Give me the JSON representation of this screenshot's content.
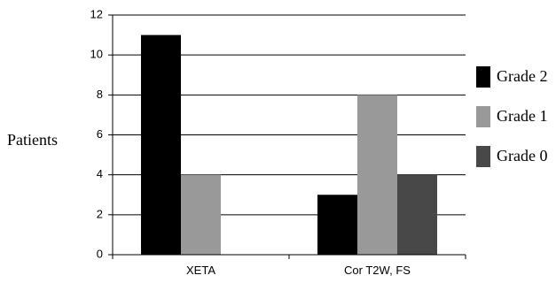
{
  "chart_data": {
    "type": "bar",
    "title": "",
    "xlabel": "",
    "ylabel": "Patients",
    "ylim": [
      0,
      12
    ],
    "yticks": [
      0,
      2,
      4,
      6,
      8,
      10,
      12
    ],
    "grid": true,
    "legend_position": "right",
    "categories": [
      "XETA",
      "Cor T2W, FS"
    ],
    "series": [
      {
        "name": "Grade 2",
        "color": "#000000",
        "values": [
          11,
          3
        ]
      },
      {
        "name": "Grade 1",
        "color": "#999999",
        "values": [
          4,
          8
        ]
      },
      {
        "name": "Grade 0",
        "color": "#484848",
        "values": [
          0,
          4
        ]
      }
    ]
  }
}
